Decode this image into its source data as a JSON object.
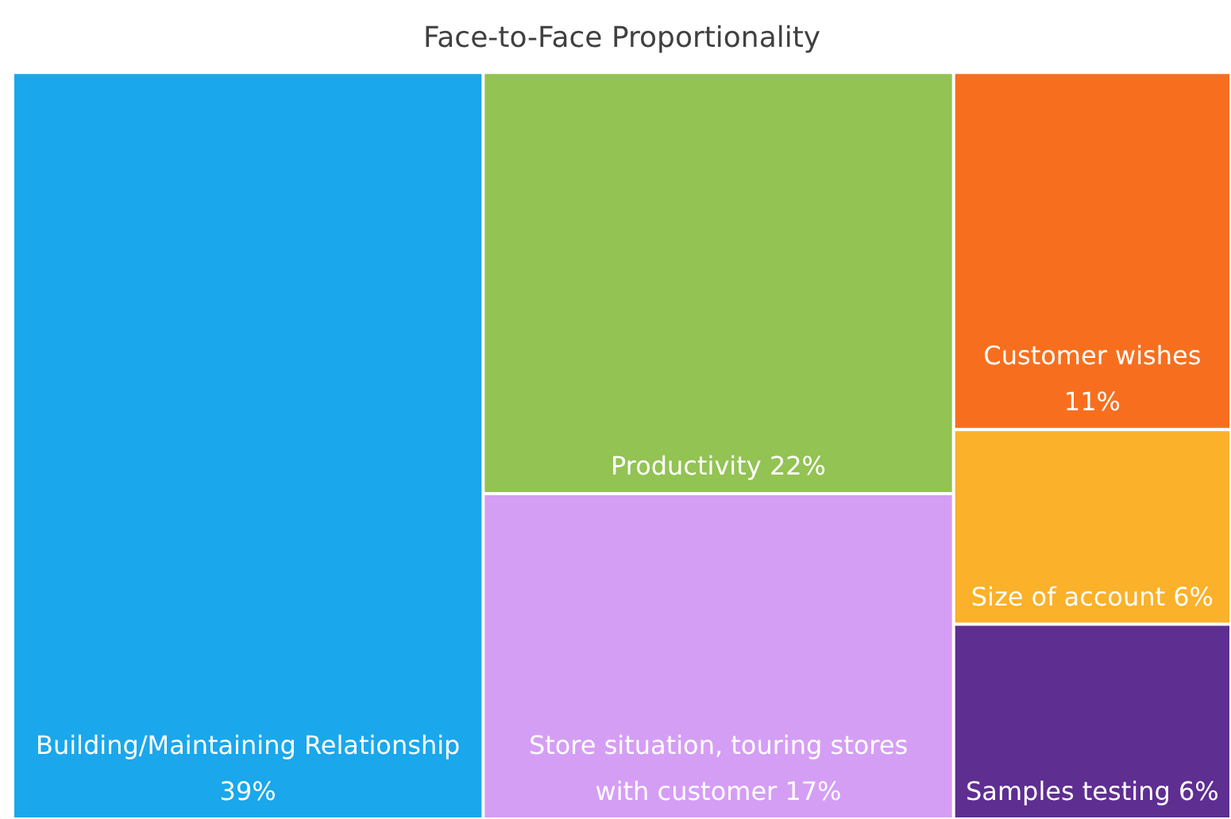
{
  "chart_data": {
    "type": "other",
    "title": "Face-to-Face Proportionality",
    "categories": [
      "Building/Maintaining Relationship",
      "Productivity",
      "Store situation, touring stores with customer",
      "Customer wishes",
      "Size of account",
      "Samples testing"
    ],
    "values": [
      39,
      22,
      17,
      11,
      6,
      6
    ],
    "value_labels": [
      "39%",
      "22%",
      "17%",
      "11%",
      "6%",
      "6%"
    ],
    "colors": [
      "#1aa7ec",
      "#92c353",
      "#d59ef5",
      "#f76f1e",
      "#fbb12a",
      "#5e2e91"
    ]
  }
}
